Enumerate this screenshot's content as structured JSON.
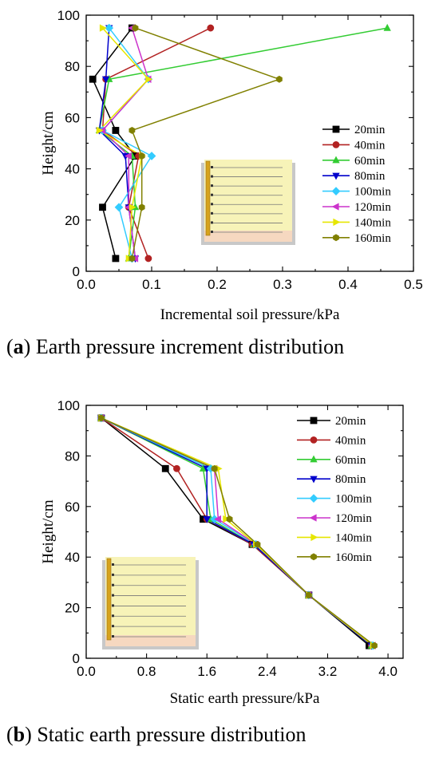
{
  "captions": [
    {
      "letter": "a",
      "text": " Earth pressure increment distribution"
    },
    {
      "letter": "b",
      "text": " Static earth pressure distribution"
    }
  ],
  "colors": {
    "20min": "#000000",
    "40min": "#b22222",
    "60min": "#33cc33",
    "80min": "#0000cc",
    "100min": "#33ccff",
    "120min": "#cc33cc",
    "140min": "#e6e600",
    "160min": "#808000"
  },
  "chart_data": [
    {
      "type": "line",
      "xlabel": "Incremental soil pressure/kPa",
      "ylabel": "Height/cm",
      "xlim": [
        0.0,
        0.5
      ],
      "ylim": [
        0,
        100
      ],
      "xticks": [
        "0.0",
        "0.1",
        "0.2",
        "0.3",
        "0.4",
        "0.5"
      ],
      "yticks": [
        "0",
        "20",
        "40",
        "60",
        "80",
        "100"
      ],
      "legend_position": "center-right",
      "grid": false,
      "series": [
        {
          "name": "20min",
          "marker": "square",
          "points": [
            [
              0.07,
              95
            ],
            [
              0.01,
              75
            ],
            [
              0.045,
              55
            ],
            [
              0.075,
              45
            ],
            [
              0.025,
              25
            ],
            [
              0.045,
              5
            ]
          ]
        },
        {
          "name": "40min",
          "marker": "circle",
          "points": [
            [
              0.19,
              95
            ],
            [
              0.03,
              75
            ],
            [
              0.025,
              55
            ],
            [
              0.08,
              45
            ],
            [
              0.065,
              25
            ],
            [
              0.095,
              5
            ]
          ]
        },
        {
          "name": "60min",
          "marker": "triangle-up",
          "points": [
            [
              0.46,
              95
            ],
            [
              0.035,
              75
            ],
            [
              0.02,
              55
            ],
            [
              0.07,
              45
            ],
            [
              0.075,
              25
            ],
            [
              0.065,
              5
            ]
          ]
        },
        {
          "name": "80min",
          "marker": "triangle-down",
          "points": [
            [
              0.035,
              95
            ],
            [
              0.03,
              75
            ],
            [
              0.02,
              55
            ],
            [
              0.06,
              45
            ],
            [
              0.065,
              25
            ],
            [
              0.075,
              5
            ]
          ]
        },
        {
          "name": "100min",
          "marker": "diamond",
          "points": [
            [
              0.035,
              95
            ],
            [
              0.095,
              75
            ],
            [
              0.025,
              55
            ],
            [
              0.1,
              45
            ],
            [
              0.05,
              25
            ],
            [
              0.07,
              5
            ]
          ]
        },
        {
          "name": "120min",
          "marker": "triangle-left",
          "points": [
            [
              0.07,
              95
            ],
            [
              0.095,
              75
            ],
            [
              0.025,
              55
            ],
            [
              0.065,
              45
            ],
            [
              0.065,
              25
            ],
            [
              0.075,
              5
            ]
          ]
        },
        {
          "name": "140min",
          "marker": "triangle-right",
          "points": [
            [
              0.025,
              95
            ],
            [
              0.095,
              75
            ],
            [
              0.02,
              55
            ],
            [
              0.085,
              45
            ],
            [
              0.07,
              25
            ],
            [
              0.065,
              5
            ]
          ]
        },
        {
          "name": "160min",
          "marker": "hexagon",
          "points": [
            [
              0.075,
              95
            ],
            [
              0.295,
              75
            ],
            [
              0.07,
              55
            ],
            [
              0.085,
              45
            ],
            [
              0.085,
              25
            ],
            [
              0.07,
              5
            ]
          ]
        }
      ]
    },
    {
      "type": "line",
      "xlabel": "Static earth pressure/kPa",
      "ylabel": "Height/cm",
      "xlim": [
        0.0,
        4.2
      ],
      "ylim": [
        0,
        100
      ],
      "xticks": [
        "0.0",
        "0.8",
        "1.6",
        "2.4",
        "3.2",
        "4.0"
      ],
      "yticks": [
        "0",
        "20",
        "40",
        "60",
        "80",
        "100"
      ],
      "legend_position": "top-right",
      "grid": false,
      "series": [
        {
          "name": "20min",
          "marker": "square",
          "points": [
            [
              0.2,
              95
            ],
            [
              1.05,
              75
            ],
            [
              1.55,
              55
            ],
            [
              2.2,
              45
            ],
            [
              2.95,
              25
            ],
            [
              3.75,
              5
            ]
          ]
        },
        {
          "name": "40min",
          "marker": "circle",
          "points": [
            [
              0.2,
              95
            ],
            [
              1.2,
              75
            ],
            [
              1.6,
              55
            ],
            [
              2.2,
              45
            ],
            [
              2.95,
              25
            ],
            [
              3.78,
              5
            ]
          ]
        },
        {
          "name": "60min",
          "marker": "triangle-up",
          "points": [
            [
              0.2,
              95
            ],
            [
              1.55,
              75
            ],
            [
              1.65,
              55
            ],
            [
              2.22,
              45
            ],
            [
              2.95,
              25
            ],
            [
              3.78,
              5
            ]
          ]
        },
        {
          "name": "80min",
          "marker": "triangle-down",
          "points": [
            [
              0.2,
              95
            ],
            [
              1.6,
              75
            ],
            [
              1.6,
              55
            ],
            [
              2.22,
              45
            ],
            [
              2.95,
              25
            ],
            [
              3.78,
              5
            ]
          ]
        },
        {
          "name": "100min",
          "marker": "diamond",
          "points": [
            [
              0.2,
              95
            ],
            [
              1.65,
              75
            ],
            [
              1.7,
              55
            ],
            [
              2.25,
              45
            ],
            [
              2.95,
              25
            ],
            [
              3.8,
              5
            ]
          ]
        },
        {
          "name": "120min",
          "marker": "triangle-left",
          "points": [
            [
              0.2,
              95
            ],
            [
              1.7,
              75
            ],
            [
              1.75,
              55
            ],
            [
              2.25,
              45
            ],
            [
              2.95,
              25
            ],
            [
              3.8,
              5
            ]
          ]
        },
        {
          "name": "140min",
          "marker": "triangle-right",
          "points": [
            [
              0.2,
              95
            ],
            [
              1.75,
              75
            ],
            [
              1.85,
              55
            ],
            [
              2.25,
              45
            ],
            [
              2.95,
              25
            ],
            [
              3.8,
              5
            ]
          ]
        },
        {
          "name": "160min",
          "marker": "hexagon",
          "points": [
            [
              0.2,
              95
            ],
            [
              1.7,
              75
            ],
            [
              1.9,
              55
            ],
            [
              2.27,
              45
            ],
            [
              2.95,
              25
            ],
            [
              3.82,
              5
            ]
          ]
        }
      ]
    }
  ]
}
